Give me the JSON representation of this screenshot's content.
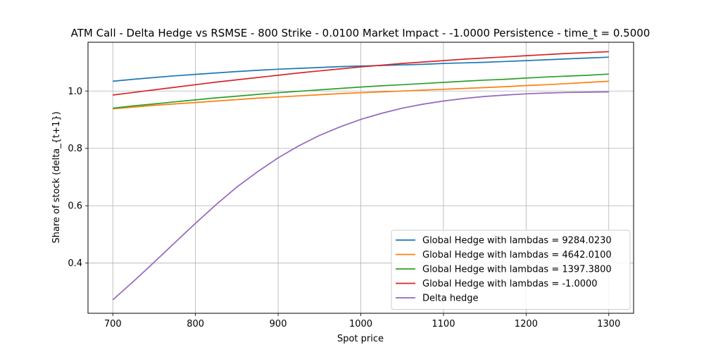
{
  "chart_data": {
    "type": "line",
    "title": "ATM Call - Delta Hedge vs RSMSE - 800 Strike - 0.0100 Market Impact - -1.0000 Persistence - time_t = 0.5000",
    "xlabel": "Spot price",
    "ylabel": "Share of stock (delta_{t+1})",
    "xlim": [
      670,
      1330
    ],
    "ylim": [
      0.225,
      1.17
    ],
    "xticks": [
      700,
      800,
      900,
      1000,
      1100,
      1200,
      1300
    ],
    "yticks": [
      0.4,
      0.6,
      0.8,
      1.0
    ],
    "grid": true,
    "legend_position": "lower-right",
    "x": [
      700,
      725,
      750,
      775,
      800,
      825,
      850,
      875,
      900,
      925,
      950,
      975,
      1000,
      1025,
      1050,
      1075,
      1100,
      1125,
      1150,
      1175,
      1200,
      1225,
      1250,
      1275,
      1300
    ],
    "series": [
      {
        "name": "Global Hedge with lambdas = 9284.0230",
        "color": "#1f77b4",
        "values": [
          1.034,
          1.041,
          1.047,
          1.053,
          1.058,
          1.063,
          1.068,
          1.072,
          1.076,
          1.079,
          1.082,
          1.085,
          1.087,
          1.089,
          1.091,
          1.093,
          1.096,
          1.098,
          1.1,
          1.103,
          1.106,
          1.109,
          1.112,
          1.115,
          1.118
        ]
      },
      {
        "name": "Global Hedge with lambdas = 4642.0100",
        "color": "#ff7f0e",
        "values": [
          0.938,
          0.944,
          0.95,
          0.955,
          0.96,
          0.965,
          0.97,
          0.975,
          0.979,
          0.983,
          0.987,
          0.991,
          0.994,
          0.997,
          1.0,
          1.003,
          1.006,
          1.009,
          1.012,
          1.015,
          1.019,
          1.022,
          1.026,
          1.03,
          1.034
        ]
      },
      {
        "name": "Global Hedge with lambdas = 1397.3800",
        "color": "#2ca02c",
        "values": [
          0.94,
          0.948,
          0.955,
          0.962,
          0.969,
          0.976,
          0.982,
          0.988,
          0.994,
          0.999,
          1.004,
          1.009,
          1.014,
          1.018,
          1.022,
          1.026,
          1.03,
          1.034,
          1.038,
          1.041,
          1.045,
          1.049,
          1.052,
          1.055,
          1.059
        ]
      },
      {
        "name": "Global Hedge with lambdas = -1.0000",
        "color": "#d62728",
        "values": [
          0.986,
          0.995,
          1.004,
          1.013,
          1.022,
          1.031,
          1.039,
          1.047,
          1.055,
          1.063,
          1.07,
          1.077,
          1.084,
          1.09,
          1.096,
          1.101,
          1.106,
          1.111,
          1.115,
          1.119,
          1.123,
          1.127,
          1.131,
          1.134,
          1.137
        ]
      },
      {
        "name": "Delta hedge",
        "color": "#9467bd",
        "values": [
          0.272,
          0.336,
          0.403,
          0.471,
          0.539,
          0.604,
          0.665,
          0.718,
          0.767,
          0.809,
          0.845,
          0.875,
          0.901,
          0.922,
          0.94,
          0.954,
          0.965,
          0.974,
          0.981,
          0.986,
          0.99,
          0.993,
          0.995,
          0.996,
          0.997
        ]
      }
    ]
  }
}
